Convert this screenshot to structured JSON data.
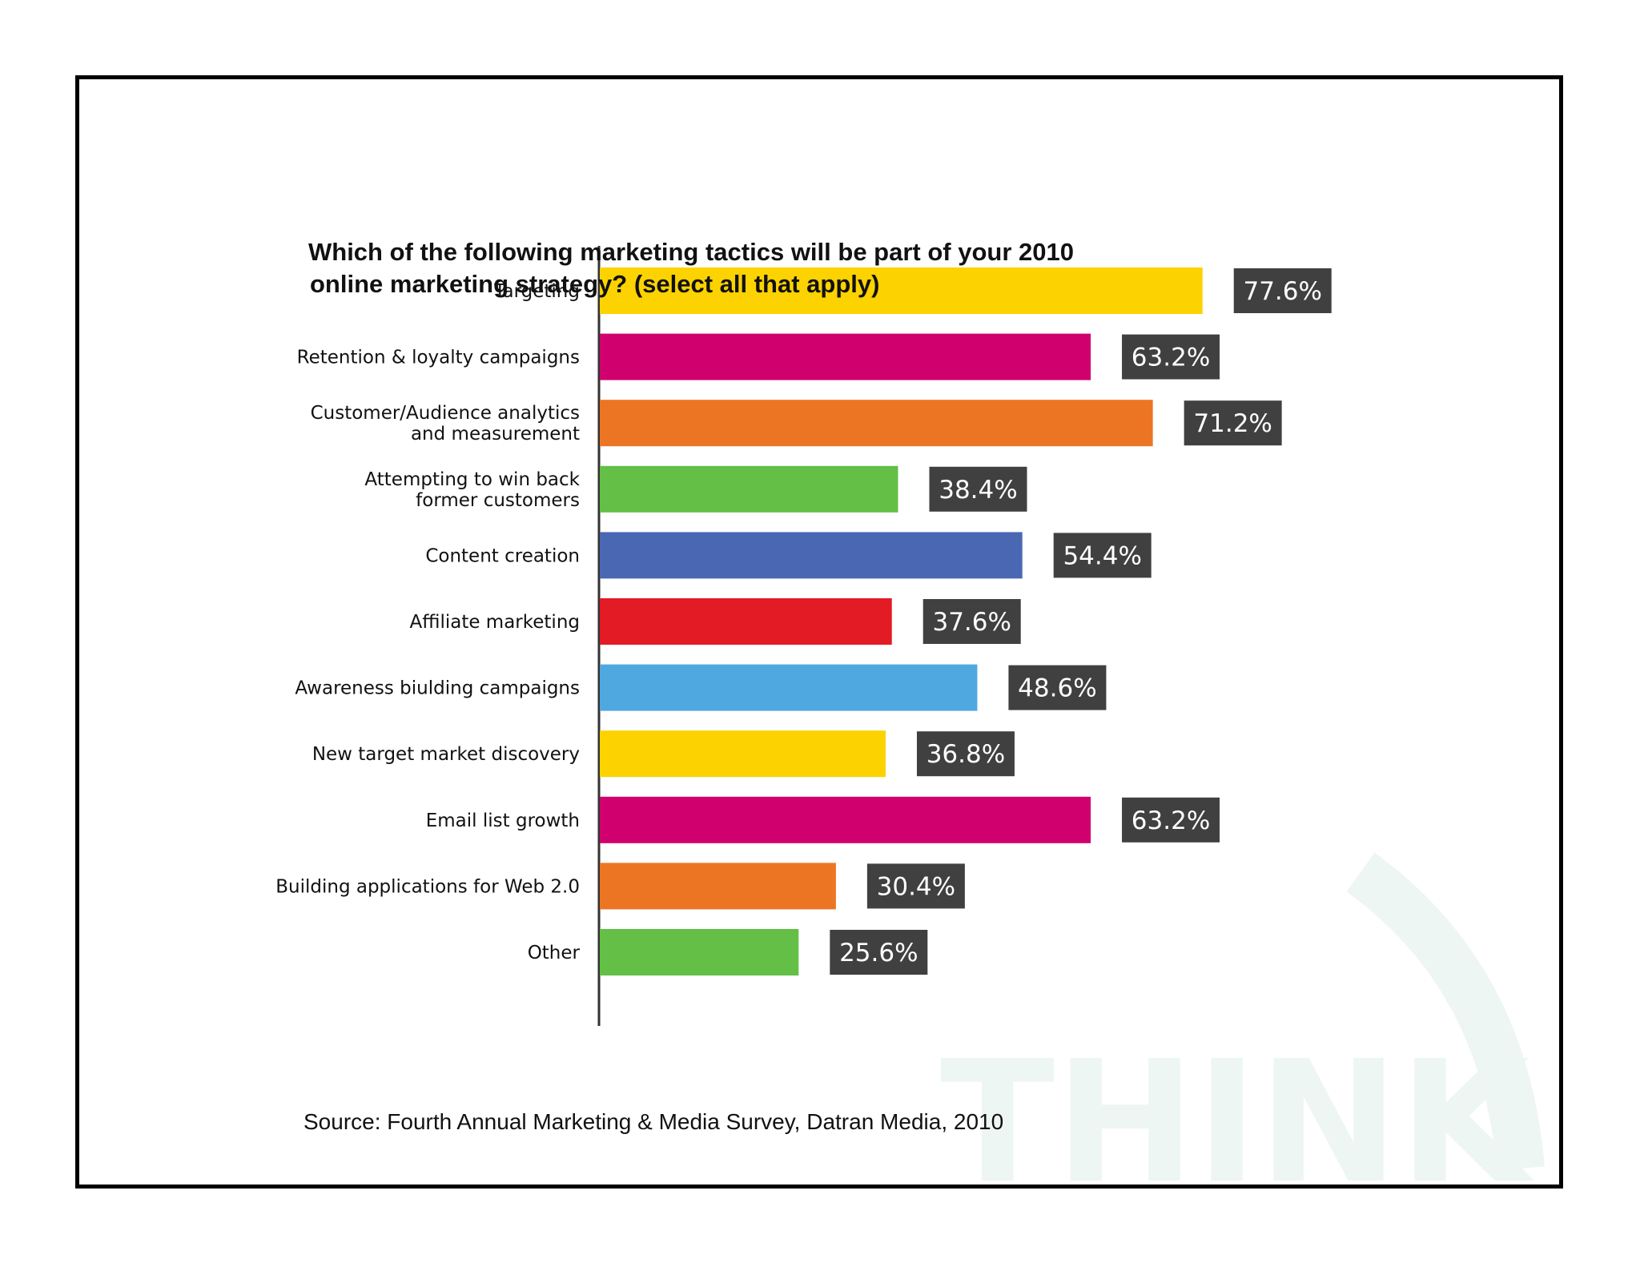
{
  "watermark": {
    "text": "THINK",
    "color": "#eef6f4"
  },
  "chart_data": {
    "type": "bar",
    "orientation": "horizontal",
    "title_lines": [
      "Which of the following marketing tactics will be part of your 2010",
      "online marketing strategy? (select all that apply)"
    ],
    "source": "Source: Fourth Annual Marketing & Media Survey, Datran Media, 2010",
    "categories": [
      [
        "Targeting"
      ],
      [
        "Retention & loyalty campaigns"
      ],
      [
        "Customer/Audience analytics",
        "and measurement"
      ],
      [
        "Attempting to win back",
        "former customers"
      ],
      [
        "Content creation"
      ],
      [
        "Affiliate marketing"
      ],
      [
        "Awareness biulding campaigns"
      ],
      [
        "New target market discovery"
      ],
      [
        "Email list growth"
      ],
      [
        "Building applications for Web 2.0"
      ],
      [
        "Other"
      ]
    ],
    "values": [
      77.6,
      63.2,
      71.2,
      38.4,
      54.4,
      37.6,
      48.6,
      36.8,
      63.2,
      30.4,
      25.6
    ],
    "value_labels": [
      "77.6%",
      "63.2%",
      "71.2%",
      "38.4%",
      "54.4%",
      "37.6%",
      "48.6%",
      "36.8%",
      "63.2%",
      "30.4%",
      "25.6%"
    ],
    "colors": [
      "#fcd200",
      "#d0006f",
      "#ec7524",
      "#63bf45",
      "#4a67b4",
      "#e31b25",
      "#4fa8e0",
      "#fcd200",
      "#d0006f",
      "#ec7524",
      "#63bf45"
    ],
    "value_label_background": "#404040",
    "xlim": [
      0,
      100
    ],
    "grid": false,
    "legend": "none"
  }
}
